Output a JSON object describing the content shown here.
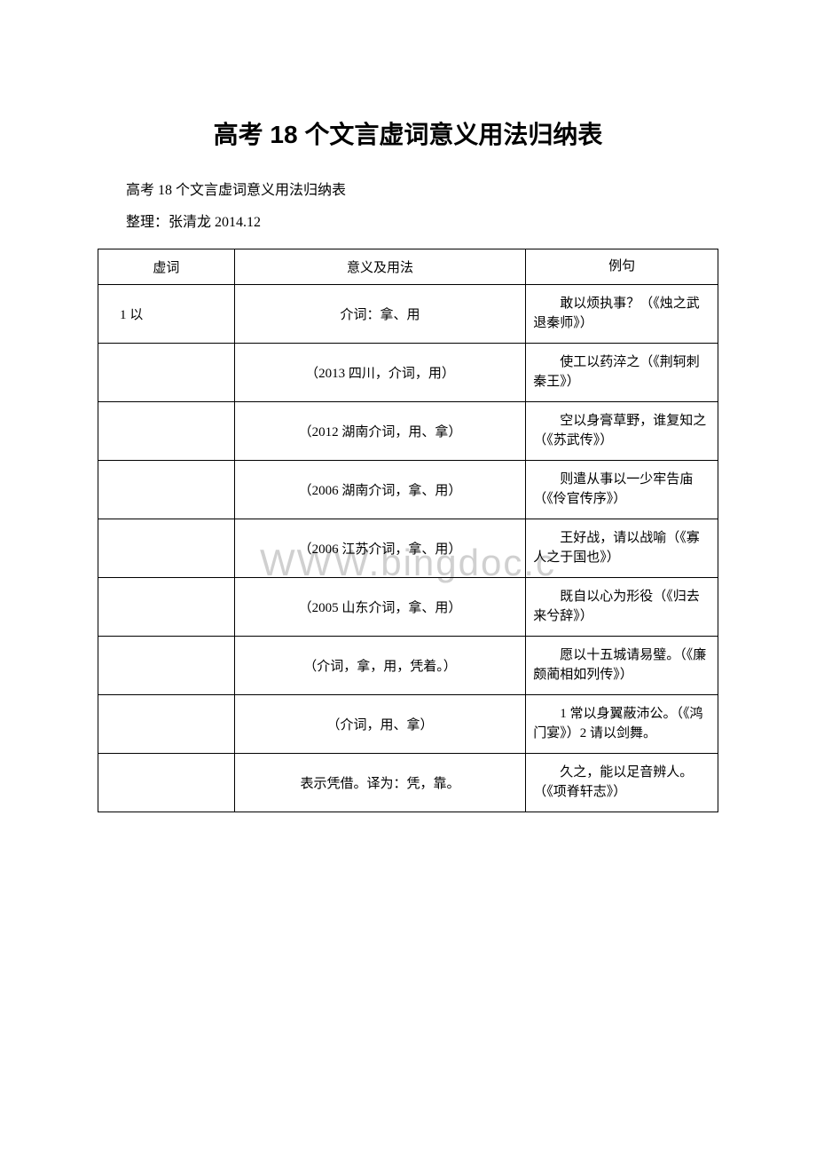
{
  "document": {
    "title": "高考 18 个文言虚词意义用法归纳表",
    "subtitle": "高考 18 个文言虚词意义用法归纳表",
    "author": "整理：张清龙 2014.12"
  },
  "watermark": "WWW.bingdoc.c",
  "table": {
    "headers": {
      "col1": "虚词",
      "col2": "意义及用法",
      "col3": "例句"
    },
    "rows": [
      {
        "col1": "1 以",
        "col2": "介词：拿、用",
        "col3": "敢以烦执事？（《烛之武退秦师》）"
      },
      {
        "col1": "",
        "col2": "（2013 四川，介词，用）",
        "col3": "使工以药淬之（《荆轲刺秦王》）"
      },
      {
        "col1": "",
        "col2": "（2012 湖南介词，用、拿）",
        "col3": "空以身膏草野，谁复知之（《苏武传》）"
      },
      {
        "col1": "",
        "col2": "（2006 湖南介词，拿、用）",
        "col3": "则遣从事以一少牢告庙（《伶官传序》）"
      },
      {
        "col1": "",
        "col2": "（2006 江苏介词，拿、用）",
        "col3": "王好战，请以战喻（《寡人之于国也》）"
      },
      {
        "col1": "",
        "col2": "（2005 山东介词，拿、用）",
        "col3": "既自以心为形役（《归去来兮辞》）"
      },
      {
        "col1": "",
        "col2": "（介词，拿，用，凭着。）",
        "col3": "愿以十五城请易璧。（《廉颇蔺相如列传》）"
      },
      {
        "col1": "",
        "col2": "（介词，用、拿）",
        "col3": "1 常以身翼蔽沛公。（《鸿门宴》）2 请以剑舞。"
      },
      {
        "col1": "",
        "col2": "表示凭借。译为：凭，靠。",
        "col3": "久之，能以足音辨人。（《项脊轩志》）"
      }
    ]
  }
}
